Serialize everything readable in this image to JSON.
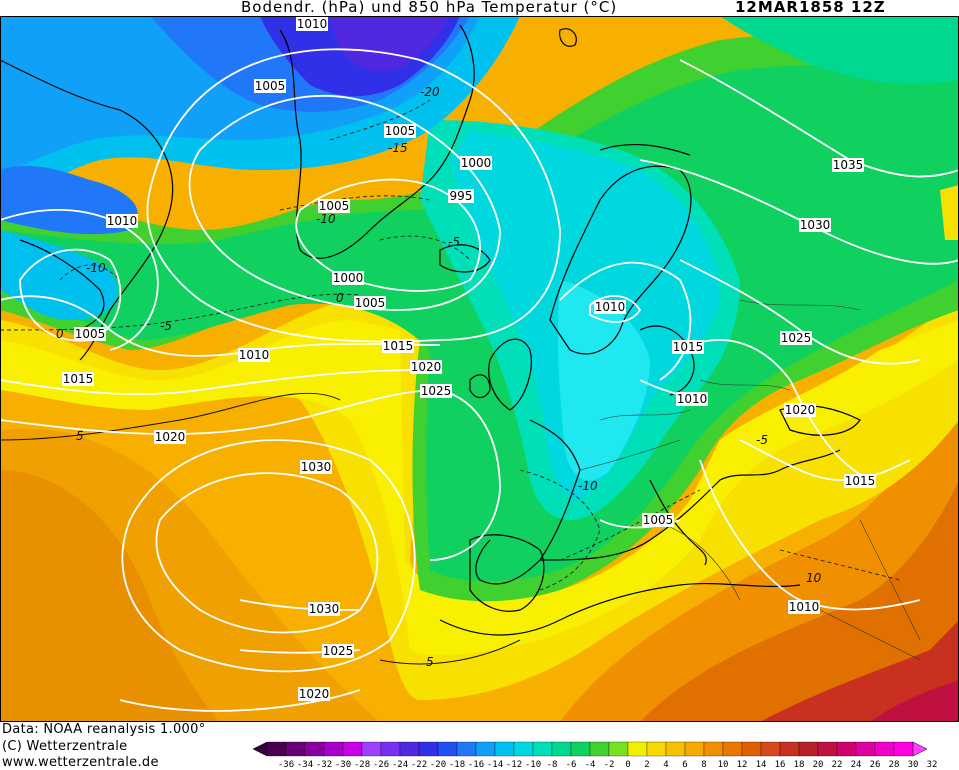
{
  "header": {
    "title": "Bodendr. (hPa) und 850 hPa Temperatur (°C)",
    "date": "12MAR1858 12Z"
  },
  "footer": {
    "data_source": "Data: NOAA reanalysis 1.000°",
    "copyright": "(C) Wetterzentrale",
    "website": "www.wetterzentrale.de"
  },
  "isobar_labels": [
    "1010",
    "1005",
    "1005",
    "1005",
    "1000",
    "995",
    "1010",
    "1000",
    "1005",
    "1005",
    "1010",
    "1015",
    "1015",
    "1020",
    "1020",
    "1025",
    "1030",
    "1030",
    "1025",
    "1020",
    "1005",
    "1010",
    "1015",
    "1010",
    "1010",
    "1025",
    "1020",
    "1015",
    "1030",
    "1035"
  ],
  "temperature_labels": [
    "-20",
    "-15",
    "-10",
    "-5",
    "-10",
    "0",
    "0",
    "-5",
    "-10",
    "-5",
    "5",
    "5",
    "10"
  ],
  "colorbar": {
    "ticks": [
      "-36",
      "-34",
      "-32",
      "-30",
      "-28",
      "-26",
      "-24",
      "-22",
      "-20",
      "-18",
      "-16",
      "-14",
      "-12",
      "-10",
      "-8",
      "-6",
      "-4",
      "-2",
      "0",
      "2",
      "4",
      "6",
      "8",
      "10",
      "12",
      "14",
      "16",
      "18",
      "20",
      "22",
      "24",
      "26",
      "28",
      "30",
      "32"
    ],
    "colors": [
      "#4a0050",
      "#6a0078",
      "#8800a0",
      "#a800c8",
      "#c800e8",
      "#a040ff",
      "#7830f0",
      "#5028e0",
      "#3030e8",
      "#2050f0",
      "#2078f8",
      "#10a0f8",
      "#00c0f0",
      "#00d8e0",
      "#00e0b8",
      "#00d890",
      "#10d060",
      "#40d030",
      "#78e020",
      "#f0f000",
      "#f8d800",
      "#f8c000",
      "#f8a800",
      "#f09000",
      "#e87800",
      "#e06000",
      "#d84818",
      "#c83020",
      "#b82028",
      "#c01040",
      "#d00070",
      "#e000a0",
      "#f000c8",
      "#ff00e0"
    ],
    "underflow_color": "#38003a",
    "overflow_color": "#ff40ff"
  },
  "map_colors": {
    "coast": "#000000",
    "isobar": "#ffffff",
    "isotherm": "#222222"
  }
}
